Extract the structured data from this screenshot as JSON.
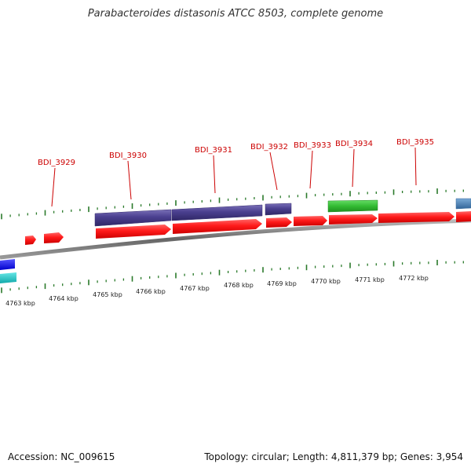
{
  "header": {
    "title": "Parabacteroides distasonis ATCC 8503, complete genome"
  },
  "footer": {
    "accession": "Accession: NC_009615",
    "summary": "Topology: circular; Length: 4,811,379 bp; Genes: 3,954"
  },
  "colors": {
    "forward_cds": "#ff1a1a",
    "reverse_cds": "#4a3f8f",
    "rna": "#33bb33",
    "label_red": "#cc0000",
    "tick_green": "#2a7a2a",
    "backbone": "#777777",
    "blue": "#1a1aee",
    "cyan": "#22cccc",
    "steel": "#4a88b8"
  },
  "gene_labels": [
    {
      "text": "BDI_3929"
    },
    {
      "text": "BDI_3930"
    },
    {
      "text": "BDI_3931"
    },
    {
      "text": "BDI_3932"
    },
    {
      "text": "BDI_3933"
    },
    {
      "text": "BDI_3934"
    },
    {
      "text": "BDI_3935"
    }
  ],
  "kbp_labels": [
    "4763 kbp",
    "4764 kbp",
    "4765 kbp",
    "4766 kbp",
    "4767 kbp",
    "4768 kbp",
    "4769 kbp",
    "4770 kbp",
    "4771 kbp",
    "4772 kbp"
  ]
}
